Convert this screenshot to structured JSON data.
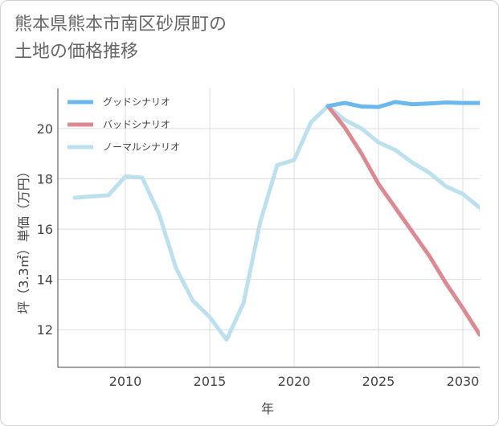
{
  "title_lines": [
    "熊本県熊本市南区砂原町の",
    "土地の価格推移"
  ],
  "chart_data": {
    "type": "line",
    "xlabel": "年",
    "ylabel": "坪（3.3㎡）単価（万円）",
    "xlim": [
      2006,
      2031
    ],
    "ylim": [
      10.5,
      21.6
    ],
    "xticks": [
      2010,
      2015,
      2020,
      2025,
      2030
    ],
    "yticks": [
      12,
      14,
      16,
      18,
      20
    ],
    "grid": true,
    "legend_position": "top-left",
    "series": [
      {
        "name": "グッドシナリオ",
        "color": "#6bb8ee",
        "x": [
          2022,
          2023,
          2024,
          2025,
          2026,
          2027,
          2028,
          2029,
          2030,
          2031
        ],
        "y": [
          20.9,
          21.02,
          20.88,
          20.86,
          21.06,
          20.97,
          21.0,
          21.04,
          21.02,
          21.02
        ]
      },
      {
        "name": "バッドシナリオ",
        "color": "#da8a90",
        "x": [
          2022,
          2023,
          2024,
          2025,
          2026,
          2027,
          2028,
          2029,
          2030,
          2031
        ],
        "y": [
          20.9,
          20.05,
          19.0,
          17.8,
          16.85,
          15.9,
          14.95,
          13.85,
          12.85,
          11.8
        ]
      },
      {
        "name": "ノーマルシナリオ",
        "color": "#bde0ee",
        "x": [
          2007,
          2008,
          2009,
          2010,
          2011,
          2012,
          2013,
          2014,
          2015,
          2016,
          2017,
          2018,
          2019,
          2020,
          2021,
          2022,
          2023,
          2024,
          2025,
          2026,
          2027,
          2028,
          2029,
          2030,
          2031
        ],
        "y": [
          17.25,
          17.3,
          17.35,
          18.1,
          18.05,
          16.6,
          14.45,
          13.15,
          12.5,
          11.6,
          13.05,
          16.3,
          18.55,
          18.75,
          20.25,
          20.9,
          20.35,
          20.0,
          19.45,
          19.15,
          18.65,
          18.25,
          17.7,
          17.4,
          16.85
        ]
      }
    ]
  }
}
